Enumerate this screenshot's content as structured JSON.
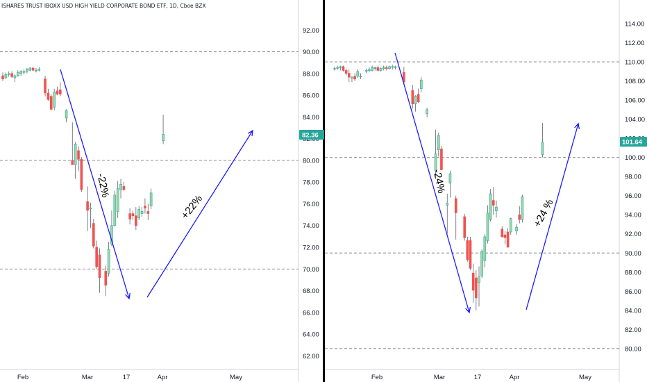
{
  "header": {
    "title": "ISHARES TRUST IBOXX USD HIGH YIELD CORPORATE BOND ETF, 1D, Cboe BZX"
  },
  "colors": {
    "up": "#a5d6a7",
    "up_edge": "#26a69a",
    "down": "#ef5350",
    "down_edge": "#ef5350",
    "arrow": "#1a1aff",
    "grid": "#787b86",
    "text": "#131722",
    "price_tag": "#26a69a"
  },
  "chart_data": [
    {
      "type": "candlestick",
      "title": "ISHARES TRUST IBOXX USD HIGH YIELD CORPORATE BOND ETF, 1D, Cboe BZX",
      "x_ticks": [
        "Feb",
        "Mar",
        "17",
        "Apr",
        "May"
      ],
      "y_ticks": [
        "62.00",
        "64.00",
        "66.00",
        "68.00",
        "70.00",
        "72.00",
        "74.00",
        "76.00",
        "78.00",
        "80.00",
        "82.00",
        "84.00",
        "86.00",
        "88.00",
        "90.00",
        "92.00"
      ],
      "ylim": [
        61,
        94
      ],
      "last_price": "82.36",
      "dashed_levels": [
        90.0,
        80.0,
        70.0
      ],
      "annotations": [
        {
          "text": "-22%"
        },
        {
          "text": "+22%"
        }
      ],
      "candles": [
        {
          "o": 87.8,
          "h": 88.1,
          "l": 87.3,
          "c": 87.5
        },
        {
          "o": 87.6,
          "h": 88.1,
          "l": 87.5,
          "c": 87.9
        },
        {
          "o": 87.9,
          "h": 88.2,
          "l": 87.7,
          "c": 88.0
        },
        {
          "o": 88.0,
          "h": 88.2,
          "l": 87.6,
          "c": 87.7
        },
        {
          "o": 87.6,
          "h": 87.9,
          "l": 87.2,
          "c": 87.8
        },
        {
          "o": 87.8,
          "h": 88.3,
          "l": 87.7,
          "c": 88.1
        },
        {
          "o": 88.0,
          "h": 88.3,
          "l": 87.8,
          "c": 88.2
        },
        {
          "o": 88.1,
          "h": 88.4,
          "l": 87.9,
          "c": 88.2
        },
        {
          "o": 88.2,
          "h": 88.5,
          "l": 88.0,
          "c": 88.4
        },
        {
          "o": 88.3,
          "h": 88.6,
          "l": 88.2,
          "c": 88.5
        },
        {
          "o": 88.5,
          "h": 88.6,
          "l": 88.2,
          "c": 88.3
        },
        {
          "o": 88.3,
          "h": 88.5,
          "l": 88.1,
          "c": 88.3
        },
        {
          "o": 88.3,
          "h": 88.6,
          "l": 88.2,
          "c": 88.4
        },
        {
          "o": null
        },
        {
          "o": 87.5,
          "h": 87.8,
          "l": 85.9,
          "c": 86.2
        },
        {
          "o": 86.2,
          "h": 86.6,
          "l": 85.5,
          "c": 85.6
        },
        {
          "o": 85.9,
          "h": 86.1,
          "l": 84.6,
          "c": 84.7
        },
        {
          "o": 84.9,
          "h": 86.6,
          "l": 84.6,
          "c": 86.3
        },
        {
          "o": 86.4,
          "h": 86.8,
          "l": 86.0,
          "c": 86.1
        },
        {
          "o": 86.5,
          "h": 87.2,
          "l": 85.9,
          "c": 86.1
        },
        {
          "o": null
        },
        {
          "o": 83.9,
          "h": 84.7,
          "l": 83.5,
          "c": 84.6
        },
        {
          "o": null
        },
        {
          "o": 80.0,
          "h": 83.5,
          "l": 79.6,
          "c": 79.6
        },
        {
          "o": 79.6,
          "h": 81.7,
          "l": 78.3,
          "c": 81.5
        },
        {
          "o": 80.9,
          "h": 81.3,
          "l": 79.0,
          "c": 80.1
        },
        {
          "o": 80.1,
          "h": 80.3,
          "l": 77.1,
          "c": 77.3
        },
        {
          "o": null
        },
        {
          "o": 76.2,
          "h": 77.6,
          "l": 73.5,
          "c": 75.4
        },
        {
          "o": 75.6,
          "h": 76.1,
          "l": 73.8,
          "c": 75.6
        },
        {
          "o": 74.2,
          "h": 74.6,
          "l": 71.9,
          "c": 72.1
        },
        {
          "o": 72.0,
          "h": 72.6,
          "l": 70.0,
          "c": 70.2
        },
        {
          "o": 71.3,
          "h": 71.9,
          "l": 67.8,
          "c": 69.2
        },
        {
          "o": null
        },
        {
          "o": 69.8,
          "h": 70.3,
          "l": 67.5,
          "c": 68.5
        },
        {
          "o": 69.6,
          "h": 72.5,
          "l": 69.3,
          "c": 71.8
        },
        {
          "o": 72.3,
          "h": 75.4,
          "l": 72.1,
          "c": 74.0
        },
        {
          "o": 74.0,
          "h": 77.2,
          "l": 73.9,
          "c": 76.8
        },
        {
          "o": 75.3,
          "h": 78.1,
          "l": 74.7,
          "c": 77.4
        },
        {
          "o": 77.3,
          "h": 78.3,
          "l": 76.5,
          "c": 77.8
        },
        {
          "o": 77.6,
          "h": 78.0,
          "l": 77.2,
          "c": 77.3
        },
        {
          "o": null
        },
        {
          "o": 75.1,
          "h": 75.6,
          "l": 74.1,
          "c": 74.6
        },
        {
          "o": 75.1,
          "h": 75.4,
          "l": 74.5,
          "c": 74.9
        },
        {
          "o": 74.9,
          "h": 75.7,
          "l": 73.6,
          "c": 74.0
        },
        {
          "o": 74.7,
          "h": 75.8,
          "l": 74.5,
          "c": 75.5
        },
        {
          "o": 75.1,
          "h": 75.7,
          "l": 74.8,
          "c": 75.3
        },
        {
          "o": 75.8,
          "h": 76.5,
          "l": 75.1,
          "c": 75.6
        },
        {
          "o": 75.3,
          "h": 76.0,
          "l": 74.5,
          "c": 75.1
        },
        {
          "o": 75.8,
          "h": 77.4,
          "l": 75.5,
          "c": 77.0
        },
        {
          "o": null
        },
        {
          "o": null
        },
        {
          "o": null
        },
        {
          "o": 81.8,
          "h": 84.2,
          "l": 81.5,
          "c": 82.4
        }
      ]
    },
    {
      "type": "candlestick",
      "x_ticks": [
        "Feb",
        "Mar",
        "17",
        "Apr",
        "May"
      ],
      "y_ticks": [
        "80.00",
        "82.00",
        "84.00",
        "86.00",
        "88.00",
        "90.00",
        "92.00",
        "94.00",
        "96.00",
        "98.00",
        "100.00",
        "102.00",
        "104.00",
        "106.00",
        "108.00",
        "110.00",
        "112.00",
        "114.00"
      ],
      "ylim": [
        78.1,
        115.6
      ],
      "last_price": "101.64",
      "dashed_levels": [
        110.0,
        100.0,
        90.0,
        80.0
      ],
      "annotations": [
        {
          "text": "-24%"
        },
        {
          "text": "+24  %"
        }
      ],
      "candles": [
        {
          "o": 109.3,
          "h": 109.5,
          "l": 109.1,
          "c": 109.3
        },
        {
          "o": 109.4,
          "h": 109.6,
          "l": 109.2,
          "c": 109.4
        },
        {
          "o": 109.4,
          "h": 109.6,
          "l": 109.1,
          "c": 109.5
        },
        {
          "o": 109.5,
          "h": 109.6,
          "l": 109.0,
          "c": 109.1
        },
        {
          "o": 109.1,
          "h": 109.3,
          "l": 108.6,
          "c": 108.8
        },
        {
          "o": 108.8,
          "h": 109.2,
          "l": 107.9,
          "c": 108.4
        },
        {
          "o": 108.3,
          "h": 108.5,
          "l": 107.9,
          "c": 108.4
        },
        {
          "o": 108.5,
          "h": 108.8,
          "l": 108.0,
          "c": 108.2
        },
        {
          "o": 108.5,
          "h": 109.2,
          "l": 108.3,
          "c": 109.0
        },
        {
          "o": 108.5,
          "h": 108.8,
          "l": 108.2,
          "c": 108.5
        },
        {
          "o": null
        },
        {
          "o": 109.1,
          "h": 109.3,
          "l": 108.8,
          "c": 109.1
        },
        {
          "o": 109.1,
          "h": 109.4,
          "l": 108.9,
          "c": 109.2
        },
        {
          "o": 109.1,
          "h": 109.6,
          "l": 109.0,
          "c": 109.4
        },
        {
          "o": 109.3,
          "h": 109.5,
          "l": 109.1,
          "c": 109.4
        },
        {
          "o": 109.4,
          "h": 109.6,
          "l": 109.0,
          "c": 109.1
        },
        {
          "o": 109.1,
          "h": 109.4,
          "l": 109.0,
          "c": 109.3
        },
        {
          "o": 109.3,
          "h": 109.6,
          "l": 109.1,
          "c": 109.4
        },
        {
          "o": 109.4,
          "h": 109.6,
          "l": 109.1,
          "c": 109.3
        },
        {
          "o": 109.3,
          "h": 109.6,
          "l": 109.2,
          "c": 109.5
        },
        {
          "o": 109.5,
          "h": 109.7,
          "l": 109.2,
          "c": 109.5
        },
        {
          "o": 109.4,
          "h": 109.6,
          "l": 109.2,
          "c": 109.5
        },
        {
          "o": null
        },
        {
          "o": null
        },
        {
          "o": 108.9,
          "h": 109.5,
          "l": 107.7,
          "c": 107.9
        },
        {
          "o": null
        },
        {
          "o": null
        },
        {
          "o": 107.0,
          "h": 107.6,
          "l": 105.1,
          "c": 105.6
        },
        {
          "o": 105.6,
          "h": 106.5,
          "l": 104.8,
          "c": 106.4
        },
        {
          "o": 106.6,
          "h": 107.2,
          "l": 105.7,
          "c": 105.8
        },
        {
          "o": 107.2,
          "h": 108.4,
          "l": 106.8,
          "c": 108.1
        },
        {
          "o": null
        },
        {
          "o": 104.6,
          "h": 105.2,
          "l": 104.2,
          "c": 105.0
        },
        {
          "o": null
        },
        {
          "o": null
        },
        {
          "o": 98.6,
          "h": 102.9,
          "l": 98.0,
          "c": 100.4
        },
        {
          "o": 100.8,
          "h": 102.6,
          "l": 100.1,
          "c": 102.3
        },
        {
          "o": 100.9,
          "h": 101.2,
          "l": 98.7,
          "c": 98.7
        },
        {
          "o": null
        },
        {
          "o": 95.0,
          "h": 96.2,
          "l": 92.0,
          "c": 95.2
        },
        {
          "o": 97.3,
          "h": 98.6,
          "l": 95.8,
          "c": 98.3
        },
        {
          "o": null
        },
        {
          "o": 95.7,
          "h": 96.0,
          "l": 91.4,
          "c": 94.2
        },
        {
          "o": null
        },
        {
          "o": null
        },
        {
          "o": 93.8,
          "h": 94.1,
          "l": 91.3,
          "c": 91.6
        },
        {
          "o": 91.3,
          "h": 91.7,
          "l": 89.1,
          "c": 89.3
        },
        {
          "o": 91.3,
          "h": 91.7,
          "l": 88.2,
          "c": 88.4
        },
        {
          "o": 87.9,
          "h": 88.9,
          "l": 84.8,
          "c": 86.1
        },
        {
          "o": 87.4,
          "h": 88.2,
          "l": 84.0,
          "c": 85.3
        },
        {
          "o": 86.9,
          "h": 88.6,
          "l": 84.4,
          "c": 87.5
        },
        {
          "o": 87.6,
          "h": 90.4,
          "l": 87.4,
          "c": 90.2
        },
        {
          "o": 89.2,
          "h": 92.0,
          "l": 88.5,
          "c": 91.7
        },
        {
          "o": 91.3,
          "h": 95.0,
          "l": 91.0,
          "c": 94.2
        },
        {
          "o": 93.5,
          "h": 96.7,
          "l": 93.3,
          "c": 96.2
        },
        {
          "o": 95.5,
          "h": 96.9,
          "l": 94.0,
          "c": 95.0
        },
        {
          "o": 94.4,
          "h": 95.5,
          "l": 93.7,
          "c": 94.8
        },
        {
          "o": null
        },
        {
          "o": 92.5,
          "h": 92.8,
          "l": 91.6,
          "c": 91.7
        },
        {
          "o": 91.9,
          "h": 92.3,
          "l": 90.9,
          "c": 91.6
        },
        {
          "o": 92.2,
          "h": 92.6,
          "l": 90.6,
          "c": 90.6
        },
        {
          "o": 92.2,
          "h": 93.7,
          "l": 91.9,
          "c": 93.6
        },
        {
          "o": null
        },
        {
          "o": 92.3,
          "h": 93.0,
          "l": 91.9,
          "c": 92.7
        },
        {
          "o": 94.0,
          "h": 94.9,
          "l": 93.1,
          "c": 93.5
        },
        {
          "o": 93.5,
          "h": 96.1,
          "l": 93.2,
          "c": 95.9
        },
        {
          "o": null
        },
        {
          "o": null
        },
        {
          "o": null
        },
        {
          "o": null
        },
        {
          "o": null
        },
        {
          "o": null
        },
        {
          "o": 100.3,
          "h": 103.6,
          "l": 100.0,
          "c": 101.6
        }
      ]
    }
  ]
}
